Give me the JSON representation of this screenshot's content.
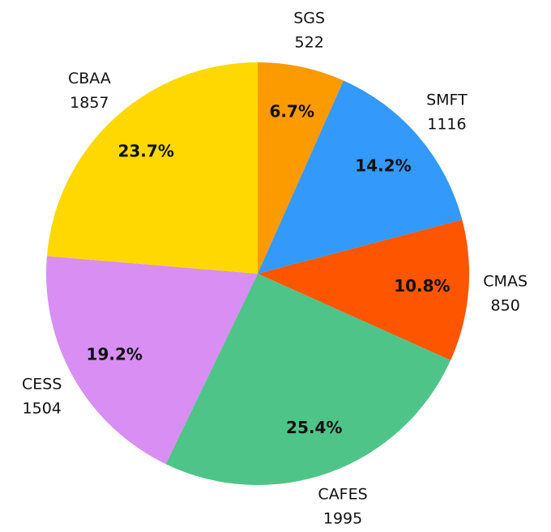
{
  "chart_data": {
    "type": "pie",
    "categories": [
      "SGS",
      "SMFT",
      "CMAS",
      "CAFES",
      "CESS",
      "CBAA"
    ],
    "values": [
      522,
      1116,
      850,
      1995,
      1504,
      1857
    ],
    "value_labels": [
      "6.7%",
      "14.2%",
      "10.8%",
      "25.4%",
      "19.2%",
      "23.7%"
    ],
    "colors": [
      "#fb9b00",
      "#3399fb",
      "#fd5500",
      "#4fc488",
      "#d88ef3",
      "#fed800"
    ]
  }
}
